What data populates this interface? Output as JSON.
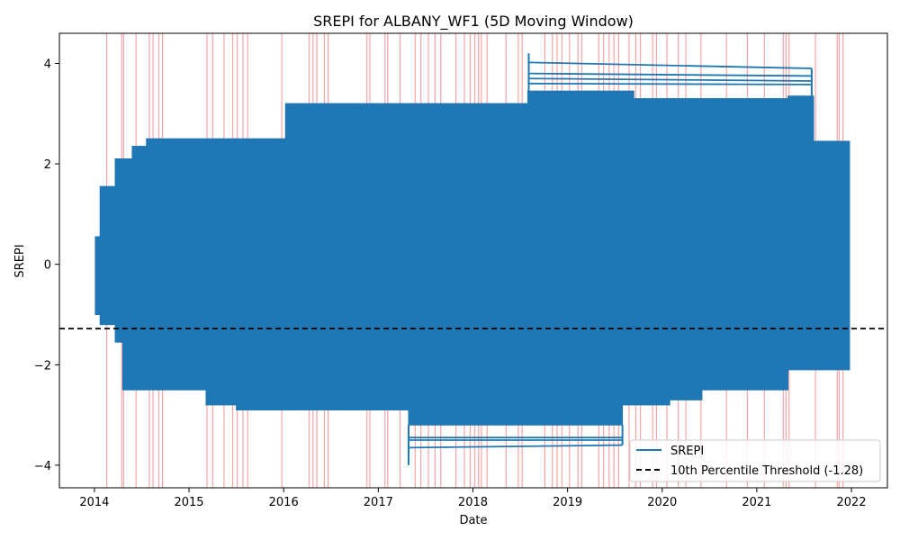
{
  "chart_data": {
    "type": "line",
    "title": "SREPI for ALBANY_WF1 (5D Moving Window)",
    "xlabel": "Date",
    "ylabel": "SREPI",
    "xlim": [
      2013.63,
      2022.38
    ],
    "ylim": [
      -4.45,
      4.6
    ],
    "x_ticks": [
      2014,
      2015,
      2016,
      2017,
      2018,
      2019,
      2020,
      2021,
      2022
    ],
    "x_tick_labels": [
      "2014",
      "2015",
      "2016",
      "2017",
      "2018",
      "2019",
      "2020",
      "2021",
      "2022"
    ],
    "y_ticks": [
      -4,
      -2,
      0,
      2,
      4
    ],
    "y_tick_labels": [
      "−4",
      "−2",
      "0",
      "2",
      "4"
    ],
    "grid": false,
    "legend_position": "lower-right",
    "colors": {
      "series": "#1f77b4",
      "threshold": "#000000",
      "event_lines": "#ff6666"
    },
    "series": [
      {
        "name": "SREPI",
        "style": "solid",
        "segments": [
          {
            "x_start": 2014.01,
            "x_end": 2014.06,
            "y_min": -1.0,
            "y_max": 0.55
          },
          {
            "x_start": 2014.06,
            "x_end": 2014.22,
            "y_min": -1.2,
            "y_max": 1.55
          },
          {
            "x_start": 2014.22,
            "x_end": 2014.3,
            "y_min": -1.55,
            "y_max": 2.1
          },
          {
            "x_start": 2014.3,
            "x_end": 2014.4,
            "y_min": -2.5,
            "y_max": 2.1
          },
          {
            "x_start": 2014.4,
            "x_end": 2014.55,
            "y_min": -2.5,
            "y_max": 2.35
          },
          {
            "x_start": 2014.55,
            "x_end": 2015.18,
            "y_min": -2.5,
            "y_max": 2.5
          },
          {
            "x_start": 2015.18,
            "x_end": 2015.5,
            "y_min": -2.8,
            "y_max": 2.5
          },
          {
            "x_start": 2015.5,
            "x_end": 2016.02,
            "y_min": -2.9,
            "y_max": 2.5
          },
          {
            "x_start": 2016.02,
            "x_end": 2017.32,
            "y_min": -2.9,
            "y_max": 3.2
          },
          {
            "x_start": 2017.32,
            "x_end": 2018.58,
            "y_min": -3.2,
            "y_max": 3.2
          },
          {
            "x_start": 2018.58,
            "x_end": 2019.58,
            "y_min": -3.2,
            "y_max": 3.45
          },
          {
            "x_start": 2019.58,
            "x_end": 2019.7,
            "y_min": -2.8,
            "y_max": 3.45
          },
          {
            "x_start": 2019.7,
            "x_end": 2020.08,
            "y_min": -2.8,
            "y_max": 3.3
          },
          {
            "x_start": 2020.08,
            "x_end": 2020.42,
            "y_min": -2.7,
            "y_max": 3.3
          },
          {
            "x_start": 2020.42,
            "x_end": 2021.33,
            "y_min": -2.5,
            "y_max": 3.3
          },
          {
            "x_start": 2021.33,
            "x_end": 2021.6,
            "y_min": -2.1,
            "y_max": 3.35
          },
          {
            "x_start": 2021.6,
            "x_end": 2021.98,
            "y_min": -2.1,
            "y_max": 2.45
          }
        ],
        "outliers": [
          {
            "x_start": 2018.59,
            "x_end": 2021.58,
            "y_start": 4.02,
            "y_end": 3.9
          },
          {
            "x_start": 2018.59,
            "x_end": 2021.58,
            "y_start": 3.8,
            "y_end": 3.75
          },
          {
            "x_start": 2018.59,
            "x_end": 2021.58,
            "y_start": 3.7,
            "y_end": 3.65
          },
          {
            "x_start": 2018.59,
            "x_end": 2021.58,
            "y_start": 3.6,
            "y_end": 3.58
          },
          {
            "x_start": 2017.32,
            "x_end": 2019.58,
            "y_start": -3.45,
            "y_end": -3.45
          },
          {
            "x_start": 2017.32,
            "x_end": 2019.58,
            "y_start": -3.5,
            "y_end": -3.5
          },
          {
            "x_start": 2017.32,
            "x_end": 2019.58,
            "y_start": -3.65,
            "y_end": -3.6
          }
        ]
      },
      {
        "name": "10th Percentile Threshold (-1.28)",
        "style": "dashed",
        "y": -1.28
      }
    ],
    "event_lines_x": [
      2014.13,
      2014.29,
      2014.31,
      2014.44,
      2014.58,
      2014.62,
      2014.68,
      2014.72,
      2015.19,
      2015.25,
      2015.37,
      2015.46,
      2015.51,
      2015.57,
      2015.62,
      2015.98,
      2016.27,
      2016.31,
      2016.35,
      2016.43,
      2016.47,
      2016.88,
      2016.91,
      2017.07,
      2017.1,
      2017.23,
      2017.39,
      2017.45,
      2017.53,
      2017.6,
      2017.66,
      2017.82,
      2017.91,
      2017.97,
      2018.02,
      2018.06,
      2018.09,
      2018.15,
      2018.35,
      2018.48,
      2018.52,
      2018.76,
      2018.84,
      2018.89,
      2018.94,
      2019.02,
      2019.11,
      2019.15,
      2019.33,
      2019.38,
      2019.44,
      2019.49,
      2019.54,
      2019.65,
      2019.72,
      2019.77,
      2019.9,
      2019.94,
      2020.05,
      2020.17,
      2020.25,
      2020.41,
      2020.68,
      2020.9,
      2021.08,
      2021.28,
      2021.31,
      2021.34,
      2021.62,
      2021.85,
      2021.87,
      2021.91
    ]
  }
}
